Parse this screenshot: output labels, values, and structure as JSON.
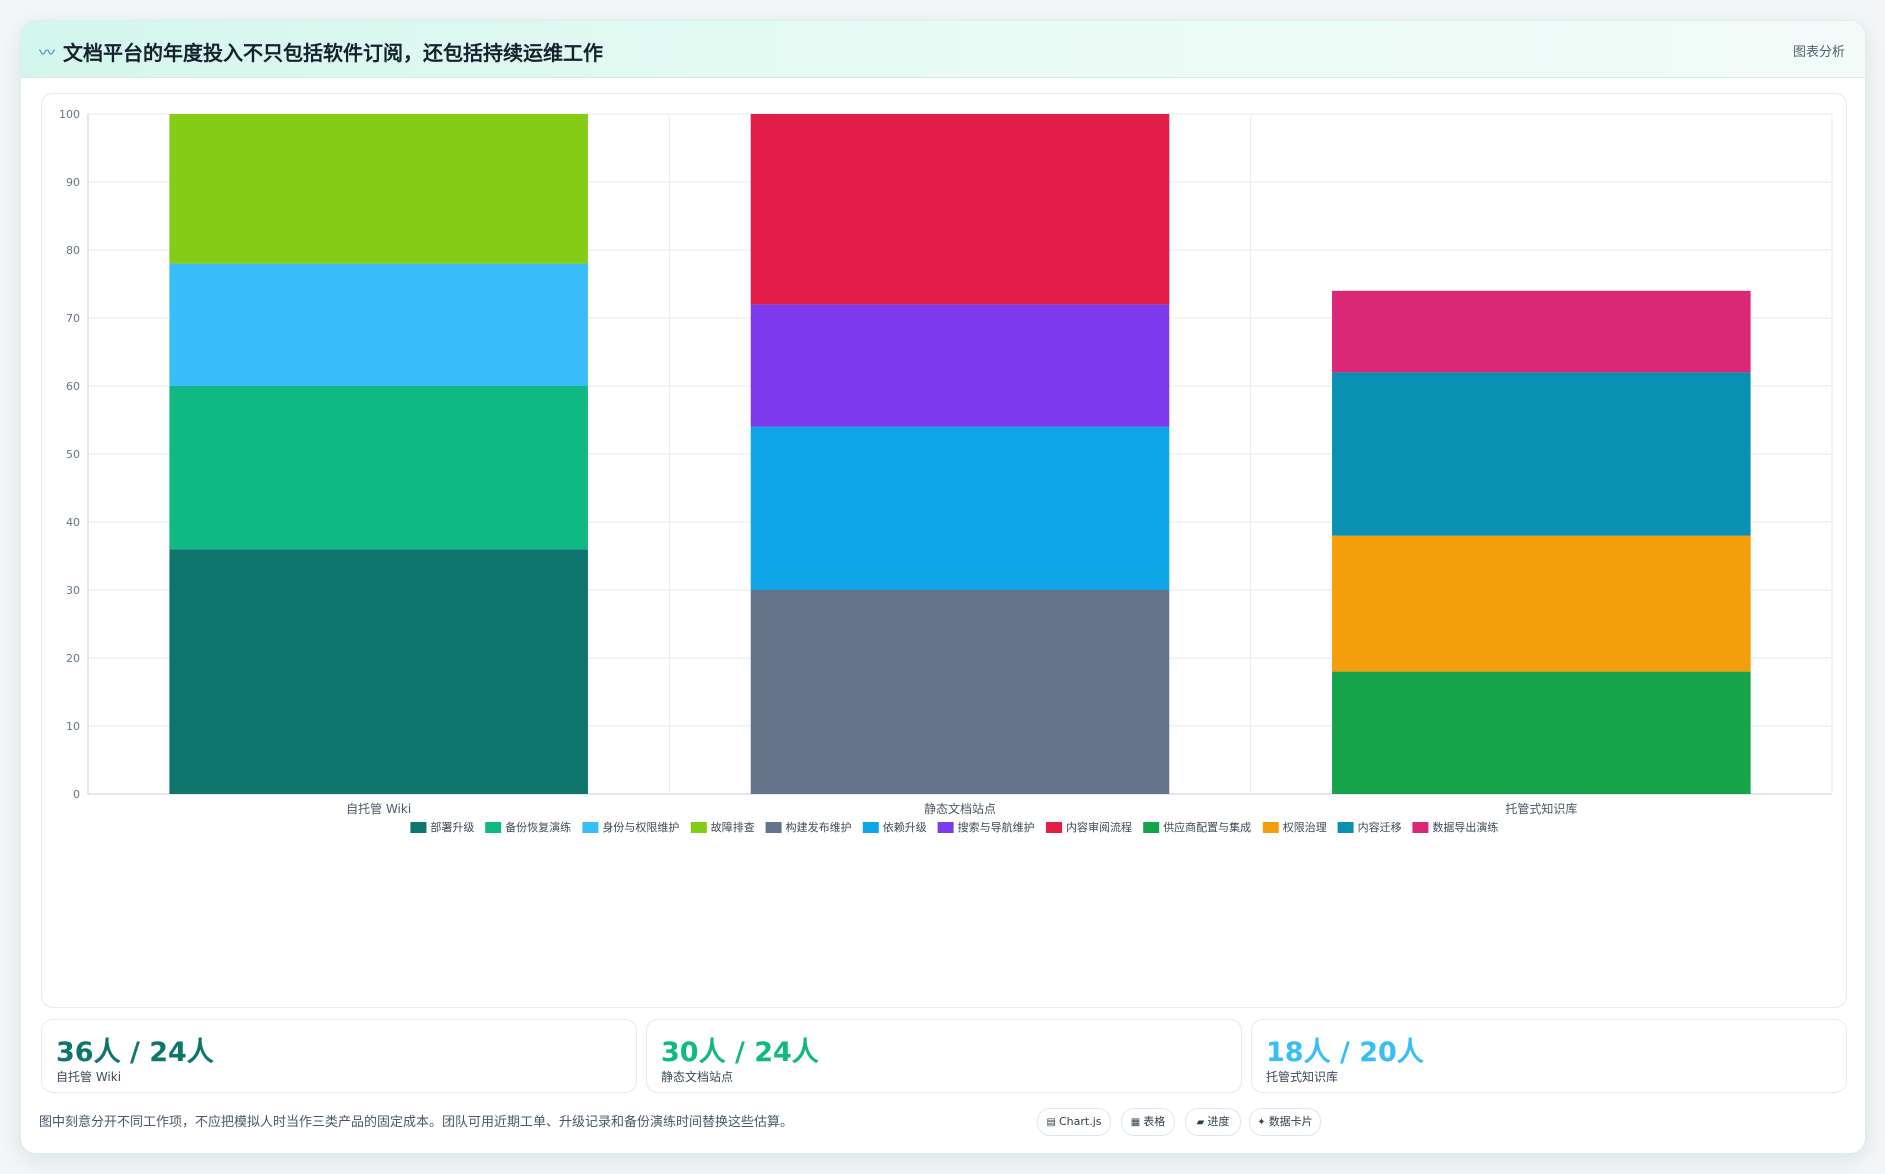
{
  "header": {
    "logo_icon": "wave-icon",
    "title": "文档平台的年度投入不只包括软件订阅，还包括持续运维工作",
    "tag": "图表分析"
  },
  "chart_data": {
    "type": "bar",
    "stacked": true,
    "title": "",
    "xlabel": "",
    "ylabel": "",
    "ylim": [
      0,
      100
    ],
    "yticks": [
      0,
      10,
      20,
      30,
      40,
      50,
      60,
      70,
      80,
      90,
      100
    ],
    "grid": true,
    "legend_position": "bottom",
    "categories": [
      "自托管 Wiki",
      "静态文档站点",
      "托管式知识库"
    ],
    "series": [
      {
        "name": "部署升级",
        "color": "#0f766e",
        "values": [
          36,
          0,
          0
        ]
      },
      {
        "name": "备份恢复演练",
        "color": "#10b981",
        "values": [
          24,
          0,
          0
        ]
      },
      {
        "name": "身份与权限维护",
        "color": "#38bdf8",
        "values": [
          18,
          0,
          0
        ]
      },
      {
        "name": "故障排查",
        "color": "#84cc16",
        "values": [
          22,
          0,
          0
        ]
      },
      {
        "name": "构建发布维护",
        "color": "#64748b",
        "values": [
          0,
          30,
          0
        ]
      },
      {
        "name": "依赖升级",
        "color": "#0ea5e9",
        "values": [
          0,
          24,
          0
        ]
      },
      {
        "name": "搜索与导航维护",
        "color": "#7c3aed",
        "values": [
          0,
          18,
          0
        ]
      },
      {
        "name": "内容审阅流程",
        "color": "#e11d48",
        "values": [
          0,
          28,
          0
        ]
      },
      {
        "name": "供应商配置与集成",
        "color": "#16a34a",
        "values": [
          0,
          0,
          18
        ]
      },
      {
        "name": "权限治理",
        "color": "#f59e0b",
        "values": [
          0,
          0,
          20
        ]
      },
      {
        "name": "内容迁移",
        "color": "#0891b2",
        "values": [
          0,
          0,
          24
        ]
      },
      {
        "name": "数据导出演练",
        "color": "#db2777",
        "values": [
          0,
          0,
          12
        ]
      }
    ]
  },
  "stats": [
    {
      "value": "36人 / 24人",
      "label": "自托管 Wiki",
      "color": "#0f766e"
    },
    {
      "value": "30人 / 24人",
      "label": "静态文档站点",
      "color": "#10b981"
    },
    {
      "value": "18人 / 20人",
      "label": "托管式知识库",
      "color": "#38bdf8"
    }
  ],
  "footer": {
    "note": "图中刻意分开不同工作项，不应把模拟人时当作三类产品的固定成本。团队可用近期工单、升级记录和备份演练时间替换这些估算。",
    "pills": [
      {
        "label": "Chart.js",
        "icon": "chart-icon",
        "glyph": "▤"
      },
      {
        "label": "表格",
        "icon": "table-icon",
        "glyph": "▦"
      },
      {
        "label": "进度",
        "icon": "progress-icon",
        "glyph": "▰"
      },
      {
        "label": "数据卡片",
        "icon": "card-icon",
        "glyph": "✦"
      }
    ]
  }
}
